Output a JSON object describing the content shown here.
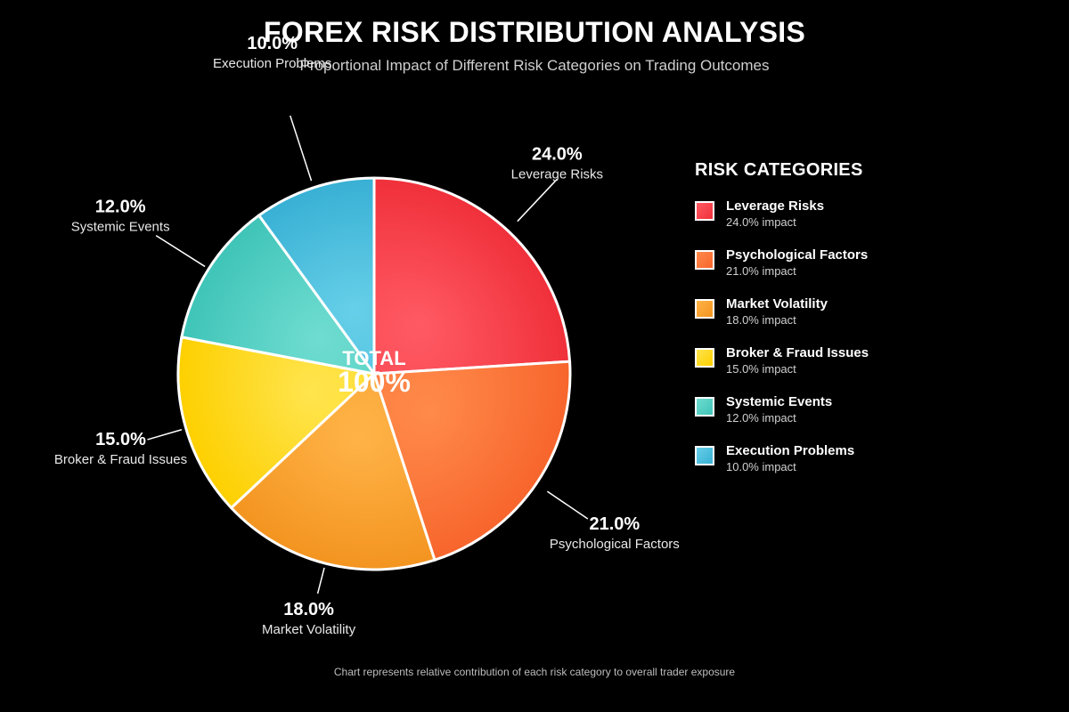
{
  "title": "FOREX RISK DISTRIBUTION ANALYSIS",
  "subtitle": "Proportional Impact of Different Risk Categories on Trading Outcomes",
  "center_label": {
    "top": "TOTAL",
    "value": "100%"
  },
  "legend": {
    "title": "RISK CATEGORIES",
    "placement": "right",
    "impact_suffix": " impact"
  },
  "footnote": "Chart represents relative contribution of each risk category to overall trader exposure",
  "chart_data": {
    "type": "pie",
    "title": "FOREX RISK DISTRIBUTION ANALYSIS",
    "subtitle": "Proportional Impact of Different Risk Categories on Trading Outcomes",
    "slices": [
      {
        "label": "Leverage Risks",
        "value": 24.0,
        "display": "24.0%",
        "color_light": "#ff5a64",
        "color_dark": "#f0303a"
      },
      {
        "label": "Psychological Factors",
        "value": 21.0,
        "display": "21.0%",
        "color_light": "#ff8a4a",
        "color_dark": "#f7652c"
      },
      {
        "label": "Market Volatility",
        "value": 18.0,
        "display": "18.0%",
        "color_light": "#ffb347",
        "color_dark": "#f39420"
      },
      {
        "label": "Broker & Fraud Issues",
        "value": 15.0,
        "display": "15.0%",
        "color_light": "#ffe44d",
        "color_dark": "#fdd000"
      },
      {
        "label": "Systemic Events",
        "value": 12.0,
        "display": "12.0%",
        "color_light": "#6fdcd0",
        "color_dark": "#3fc4b8"
      },
      {
        "label": "Execution Problems",
        "value": 10.0,
        "display": "10.0%",
        "color_light": "#66cfe8",
        "color_dark": "#38b0d4"
      }
    ]
  }
}
